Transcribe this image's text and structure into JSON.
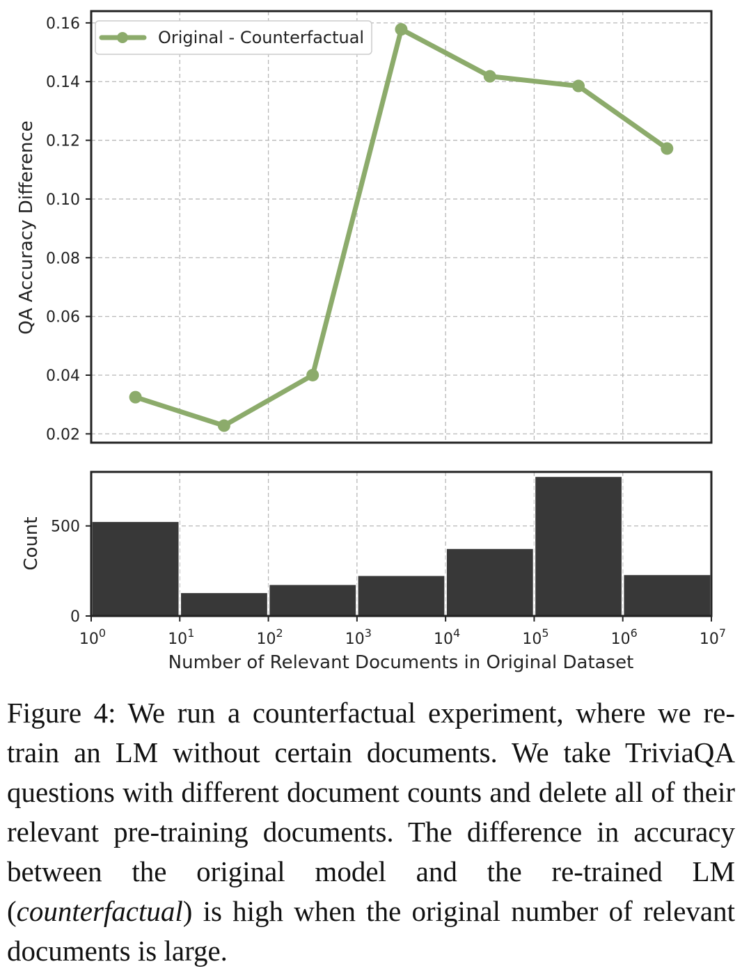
{
  "chart_data": [
    {
      "type": "line",
      "x_scale": "log",
      "xlim": [
        1,
        10000000
      ],
      "ylim": [
        0.017,
        0.164
      ],
      "y_ticks": [
        "0.02",
        "0.04",
        "0.06",
        "0.08",
        "0.10",
        "0.12",
        "0.14",
        "0.16"
      ],
      "ylabel": "QA Accuracy Difference",
      "grid": true,
      "legend_position": "top-left",
      "series": [
        {
          "name": "Original - Counterfactual",
          "color": "#8cab6b",
          "x": [
            3.16,
            31.6,
            316,
            3160,
            31600,
            316000,
            3160000
          ],
          "y": [
            0.0325,
            0.0228,
            0.04,
            0.1578,
            0.1418,
            0.1385,
            0.1172
          ]
        }
      ]
    },
    {
      "type": "bar",
      "x_scale": "log",
      "bin_edges": [
        1,
        10,
        100,
        1000,
        10000,
        100000,
        1000000,
        10000000
      ],
      "values": [
        525,
        130,
        175,
        225,
        375,
        775,
        230
      ],
      "ylim": [
        0,
        800
      ],
      "y_ticks": [
        "0",
        "500"
      ],
      "ylabel": "Count",
      "xlabel": "Number of Relevant Documents in Original Dataset",
      "x_tick_labels": [
        "0",
        "1",
        "2",
        "3",
        "4",
        "5",
        "6",
        "7"
      ],
      "x_tick_base": "10",
      "bar_color": "#383838",
      "grid": true
    }
  ],
  "caption": {
    "label": "Figure 4:",
    "part1": "We run a counterfactual experiment, where we re-train an LM without certain documents. We take TriviaQA questions with different document counts and delete all of their relevant pre-training documents. The difference in accuracy between the original model and the re-trained LM (",
    "emphasis": "counterfactual",
    "part2": ") is high when the original number of relevant documents is large."
  }
}
